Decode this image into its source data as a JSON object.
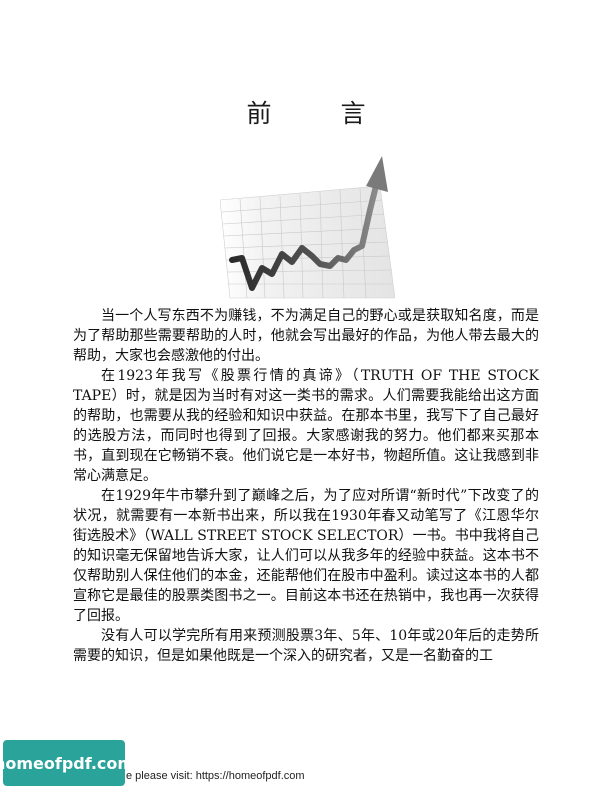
{
  "page": {
    "title": "前　言",
    "paragraphs": [
      "当一个人写东西不为赚钱，不为满足自己的野心或是获取知名度，而是为了帮助那些需要帮助的人时，他就会写出最好的作品，为他人带去最大的帮助，大家也会感激他的付出。",
      "在1923年我写《股票行情的真谛》（TRUTH OF THE STOCK TAPE）时，就是因为当时有对这一类书的需求。人们需要我能给出这方面的帮助，也需要从我的经验和知识中获益。在那本书里，我写下了自己最好的选股方法，而同时也得到了回报。大家感谢我的努力。他们都来买那本书，直到现在它畅销不衰。他们说它是一本好书，物超所值。这让我感到非常心满意足。",
      "在1929年牛市攀升到了巅峰之后，为了应对所谓“新时代”下改变了的状况，就需要有一本新书出来，所以我在1930年春又动笔写了《江恩华尔街选股术》（WALL STREET STOCK SELECTOR）一书。书中我将自己的知识毫无保留地告诉大家，让人们可以从我多年的经验中获益。这本书不仅帮助别人保住他们的本金，还能帮他们在股市中盈利。读过这本书的人都宣称它是最佳的股票类图书之一。目前这本书还在热销中，我也再一次获得了回报。",
      "没有人可以学完所有用来预测股票3年、5年、10年或20年后的走势所需要的知识，但是如果他既是一个深入的研究者，又是一名勤奋的工"
    ]
  },
  "watermark": {
    "badge_text": "homeofpdf.com",
    "footer_text": "e please visit: https://homeofpdf.com"
  }
}
